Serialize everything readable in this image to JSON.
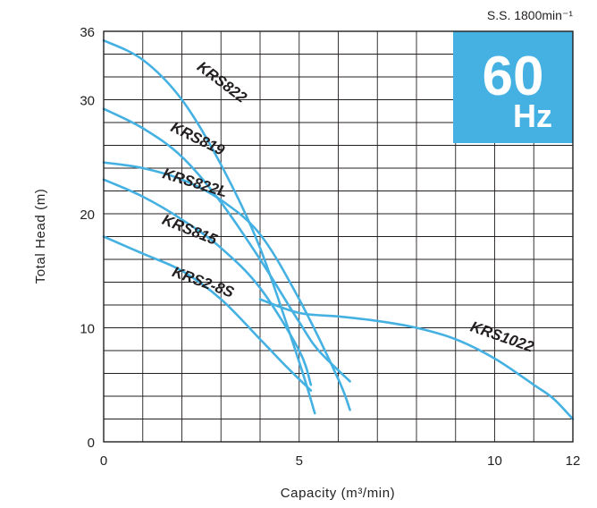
{
  "chart_data": {
    "type": "line",
    "xlabel": "Capacity (m³/min)",
    "ylabel": "Total Head (m)",
    "xlim": [
      0,
      12
    ],
    "ylim": [
      0,
      36
    ],
    "x_ticks": [
      "0",
      "5",
      "10",
      "12"
    ],
    "y_ticks": [
      "0",
      "10",
      "20",
      "30",
      "36"
    ],
    "grid": true,
    "speed_note": "S.S. 1800min⁻¹",
    "frequency_badge": {
      "value": "60",
      "unit": "Hz",
      "color": "#45b1e3"
    },
    "line_color": "#45b1e3",
    "series": [
      {
        "name": "KRS822",
        "x": [
          0,
          1,
          2,
          3,
          4,
          5,
          5.4
        ],
        "y": [
          35.2,
          33.5,
          30.0,
          24.3,
          17.0,
          7.0,
          2.5
        ]
      },
      {
        "name": "KRS819",
        "x": [
          0,
          1,
          2,
          3,
          4,
          5,
          5.5,
          6.3
        ],
        "y": [
          29.2,
          27.5,
          25.0,
          21.0,
          16.0,
          10.5,
          8.0,
          5.3
        ]
      },
      {
        "name": "KRS822L",
        "x": [
          0,
          1,
          2,
          3,
          4,
          5,
          6,
          6.3
        ],
        "y": [
          24.5,
          24.0,
          23.0,
          21.2,
          18.2,
          12.5,
          5.5,
          2.8
        ]
      },
      {
        "name": "KRS815",
        "x": [
          0,
          1,
          2,
          3,
          4,
          5,
          5.3
        ],
        "y": [
          23.0,
          21.5,
          19.5,
          17.0,
          13.5,
          8.0,
          5.0
        ]
      },
      {
        "name": "KRS2-8S",
        "x": [
          0,
          1,
          2,
          3,
          4,
          4.7,
          5.3
        ],
        "y": [
          18.0,
          16.5,
          15.0,
          12.5,
          9.0,
          6.5,
          4.5
        ]
      },
      {
        "name": "KRS1022",
        "x": [
          4,
          5,
          6,
          7,
          8,
          9,
          10,
          11,
          11.5,
          12
        ],
        "y": [
          12.5,
          11.3,
          11.0,
          10.6,
          10.0,
          9.0,
          7.3,
          5.0,
          3.8,
          2.0
        ]
      }
    ]
  }
}
